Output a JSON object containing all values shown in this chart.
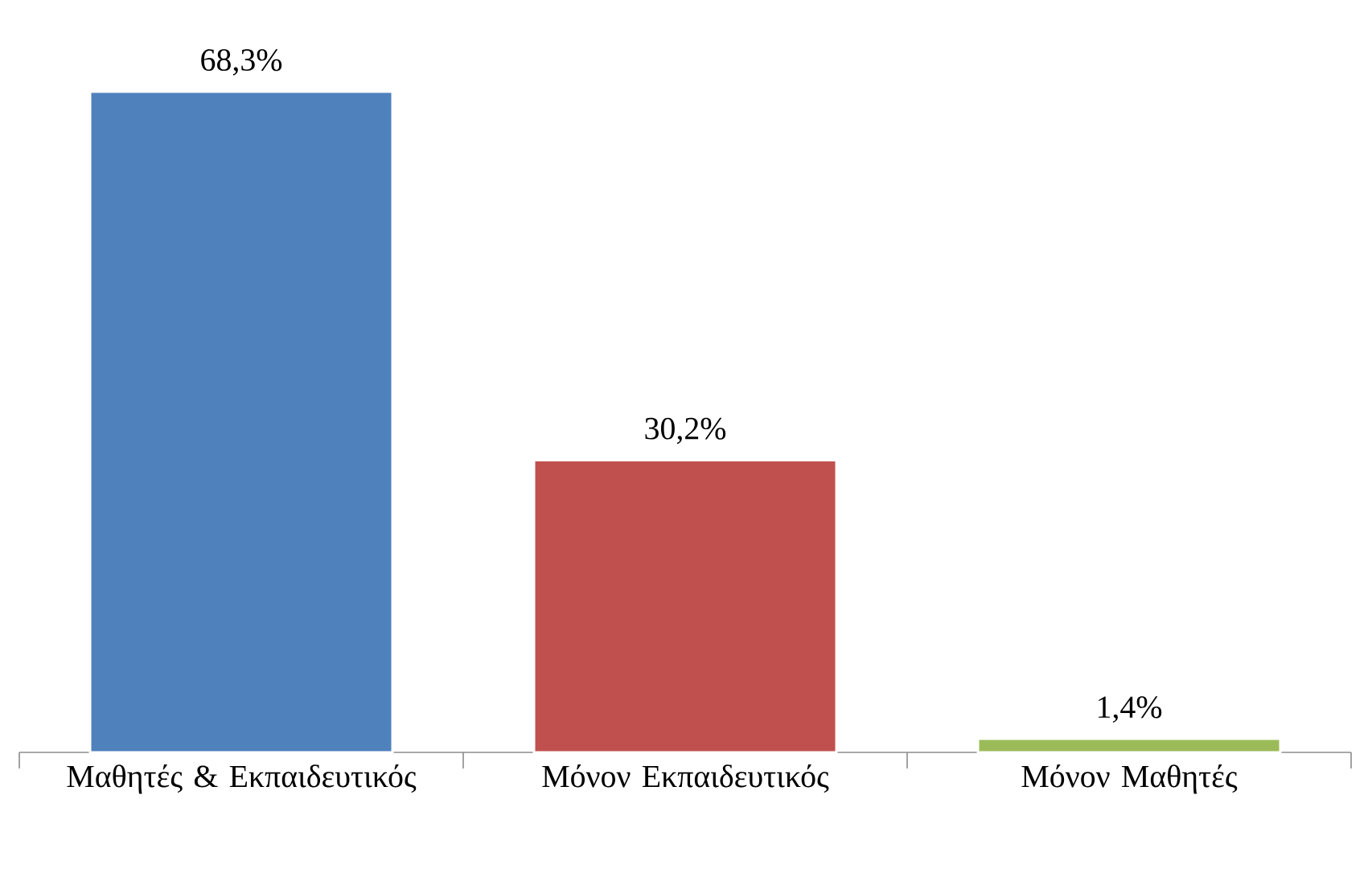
{
  "chart_data": {
    "type": "bar",
    "categories": [
      "Μαθητές & Εκπαιδευτικός",
      "Μόνον Εκπαιδευτικός",
      "Μόνον Μαθητές"
    ],
    "values": [
      68.3,
      30.2,
      1.4
    ],
    "colors": [
      "#4f81bd",
      "#c0504d",
      "#9bbb59"
    ],
    "value_labels": [
      "68,3%",
      "30,2%",
      "1,4%"
    ]
  }
}
